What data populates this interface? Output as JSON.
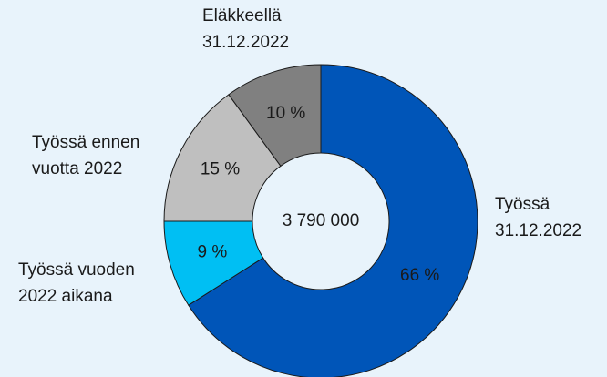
{
  "chart_data": {
    "type": "donut",
    "categories": [
      [
        "Työssä",
        "31.12.2022"
      ],
      [
        "Työssä vuoden",
        "2022 aikana"
      ],
      [
        "Työssä ennen",
        "vuotta 2022"
      ],
      [
        "Eläkkeellä",
        "31.12.2022"
      ]
    ],
    "values": [
      66,
      9,
      15,
      10
    ],
    "value_labels": [
      "66 %",
      "9 %",
      "15 %",
      "10 %"
    ],
    "colors": [
      "#0055b8",
      "#00bff3",
      "#bfbfbf",
      "#808080"
    ],
    "center_label": "3 790 000"
  }
}
